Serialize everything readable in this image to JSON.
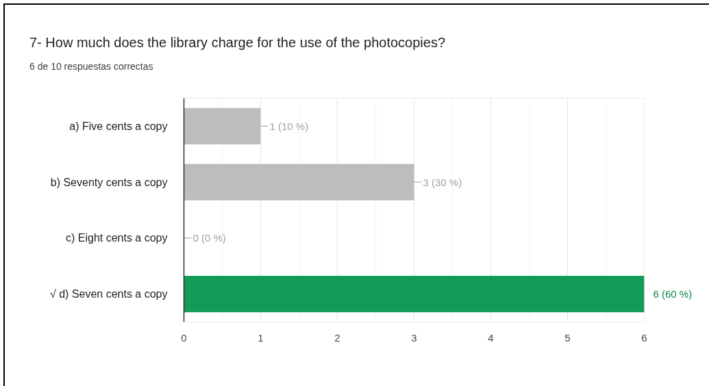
{
  "chart_data": {
    "type": "bar",
    "orientation": "horizontal",
    "title": "7- How much does the library charge for the use of the photocopies?",
    "subtitle": "6 de 10 respuestas correctas",
    "categories": [
      "a) Five cents a copy",
      "b) Seventy cents a copy",
      "c) Eight cents a copy",
      "√ d) Seven cents a copy"
    ],
    "values": [
      1,
      3,
      0,
      6
    ],
    "colors": [
      "#bdbdbd",
      "#bdbdbd",
      "#bdbdbd",
      "#129c58"
    ],
    "value_labels": [
      "1 (10 %)",
      "3 (30 %)",
      "0 (0 %)",
      "6 (60 %)"
    ],
    "xlim": [
      0,
      6
    ],
    "xticks": [
      0,
      1,
      2,
      3,
      4,
      5,
      6
    ],
    "grid": "x"
  }
}
